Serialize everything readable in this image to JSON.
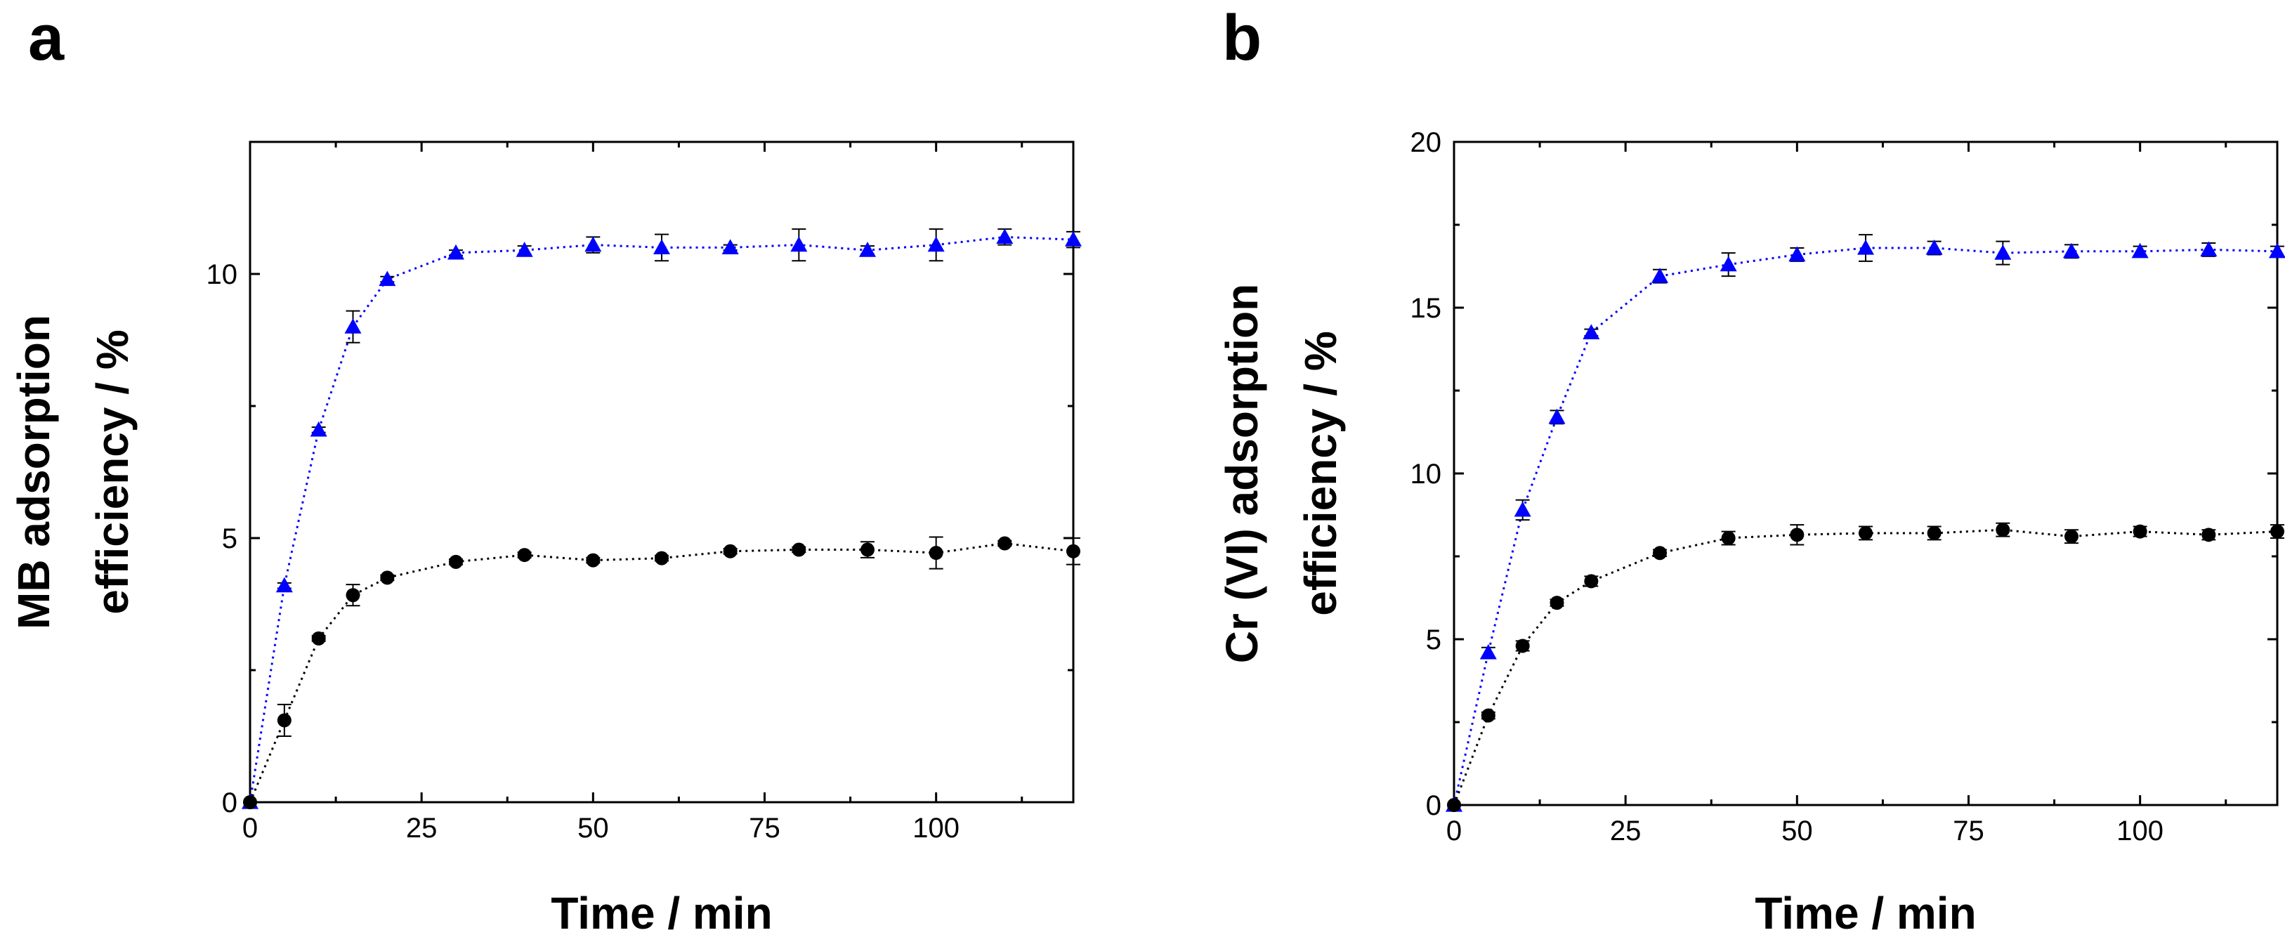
{
  "chart_data": [
    {
      "type": "line",
      "panel_label": "a",
      "title": "",
      "xlabel": "Time / min",
      "ylabel_lines": [
        "MB adsorption",
        "efficiency / %"
      ],
      "xlim": [
        0,
        120
      ],
      "ylim": [
        0,
        12.5
      ],
      "xticks": [
        0,
        25,
        50,
        75,
        100
      ],
      "yticks": [
        0,
        5,
        10
      ],
      "xtick_labels": [
        "0",
        "25",
        "50",
        "75",
        "100"
      ],
      "ytick_labels": [
        "0",
        "5",
        "10"
      ],
      "grid": false,
      "series": [
        {
          "name": "triangles",
          "marker": "triangle",
          "color": "#0000ff",
          "x": [
            0,
            5,
            10,
            15,
            20,
            30,
            40,
            50,
            60,
            70,
            80,
            90,
            100,
            110,
            120
          ],
          "values": [
            0,
            4.1,
            7.05,
            9.0,
            9.9,
            10.4,
            10.45,
            10.55,
            10.5,
            10.5,
            10.55,
            10.45,
            10.55,
            10.7,
            10.65
          ],
          "errors": [
            0,
            0.05,
            0.05,
            0.3,
            0.05,
            0.05,
            0.08,
            0.15,
            0.25,
            0.05,
            0.3,
            0.08,
            0.3,
            0.15,
            0.15
          ]
        },
        {
          "name": "circles",
          "marker": "circle",
          "color": "#000000",
          "x": [
            0,
            5,
            10,
            15,
            20,
            30,
            40,
            50,
            60,
            70,
            80,
            90,
            100,
            110,
            120
          ],
          "values": [
            0,
            1.55,
            3.1,
            3.92,
            4.25,
            4.55,
            4.68,
            4.58,
            4.62,
            4.75,
            4.78,
            4.78,
            4.72,
            4.9,
            4.75
          ],
          "errors": [
            0,
            0.3,
            0.05,
            0.2,
            0.05,
            0.05,
            0.05,
            0.05,
            0.05,
            0.05,
            0.05,
            0.15,
            0.3,
            0.05,
            0.25
          ]
        }
      ]
    },
    {
      "type": "line",
      "panel_label": "b",
      "title": "",
      "xlabel": "Time / min",
      "ylabel_lines": [
        "Cr (VI) adsorption",
        "efficiency / %"
      ],
      "xlim": [
        0,
        120
      ],
      "ylim": [
        0,
        20
      ],
      "xticks": [
        0,
        25,
        50,
        75,
        100
      ],
      "yticks": [
        0,
        5,
        10,
        15,
        20
      ],
      "xtick_labels": [
        "0",
        "25",
        "50",
        "75",
        "100"
      ],
      "ytick_labels": [
        "0",
        "5",
        "10",
        "15",
        "20"
      ],
      "grid": false,
      "series": [
        {
          "name": "triangles",
          "marker": "triangle",
          "color": "#0000ff",
          "x": [
            0,
            5,
            10,
            15,
            20,
            30,
            40,
            50,
            60,
            70,
            80,
            90,
            100,
            110,
            120
          ],
          "values": [
            0,
            4.6,
            8.9,
            11.7,
            14.25,
            15.95,
            16.3,
            16.6,
            16.8,
            16.8,
            16.65,
            16.7,
            16.7,
            16.75,
            16.7
          ],
          "errors": [
            0,
            0.15,
            0.3,
            0.2,
            0.1,
            0.2,
            0.35,
            0.2,
            0.4,
            0.2,
            0.35,
            0.2,
            0.15,
            0.2,
            0.15
          ]
        },
        {
          "name": "circles",
          "marker": "circle",
          "color": "#000000",
          "x": [
            0,
            5,
            10,
            15,
            20,
            30,
            40,
            50,
            60,
            70,
            80,
            90,
            100,
            110,
            120
          ],
          "values": [
            0,
            2.7,
            4.8,
            6.1,
            6.75,
            7.6,
            8.05,
            8.15,
            8.2,
            8.2,
            8.3,
            8.1,
            8.25,
            8.15,
            8.25
          ],
          "errors": [
            0,
            0.1,
            0.15,
            0.1,
            0.15,
            0.1,
            0.2,
            0.3,
            0.2,
            0.2,
            0.2,
            0.2,
            0.15,
            0.15,
            0.2
          ]
        }
      ]
    }
  ]
}
